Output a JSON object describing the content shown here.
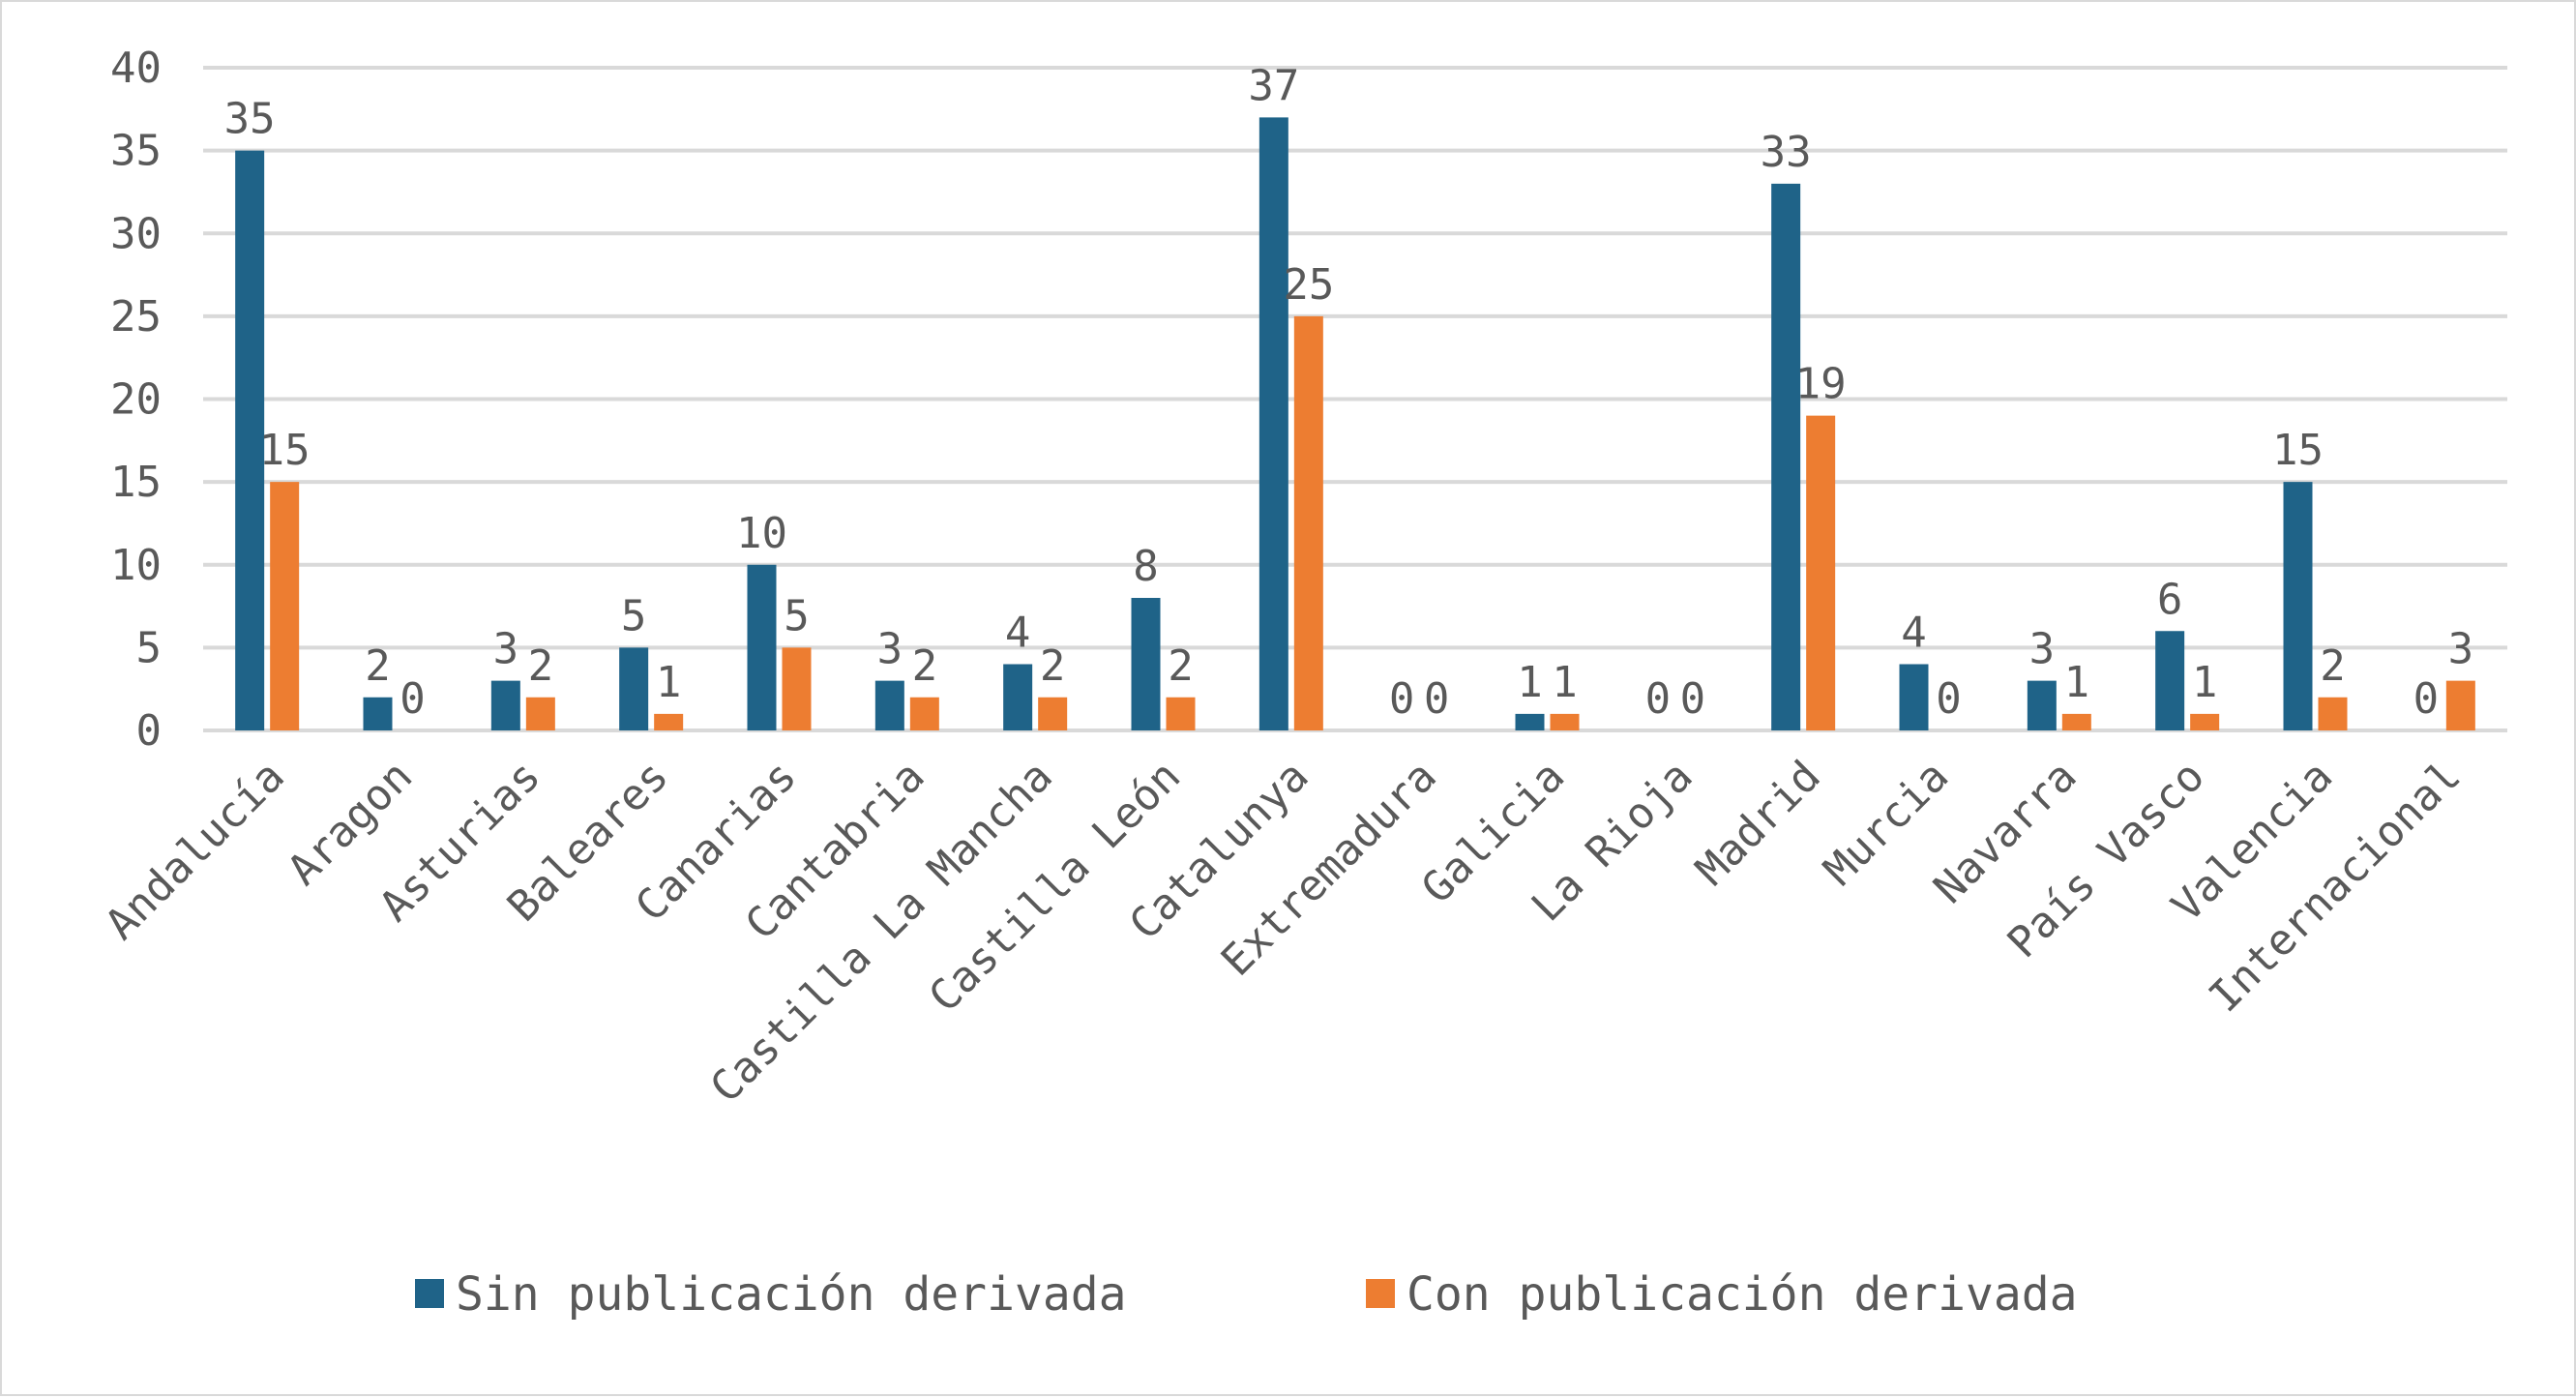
{
  "chart_data": {
    "type": "bar",
    "categories": [
      "Andalucía",
      "Aragon",
      "Asturias",
      "Baleares",
      "Canarias",
      "Cantabria",
      "Castilla La Mancha",
      "Castilla León",
      "Catalunya",
      "Extremadura",
      "Galicia",
      "La Rioja",
      "Madrid",
      "Murcia",
      "Navarra",
      "País Vasco",
      "Valencia",
      "Internacional"
    ],
    "series": [
      {
        "name": "Sin publicación derivada",
        "color": "#1f6388",
        "values": [
          35,
          2,
          3,
          5,
          10,
          3,
          4,
          8,
          37,
          0,
          1,
          0,
          33,
          4,
          3,
          6,
          15,
          0
        ]
      },
      {
        "name": "Con publicación derivada",
        "color": "#ed7d31",
        "values": [
          15,
          0,
          2,
          1,
          5,
          2,
          2,
          2,
          25,
          0,
          1,
          0,
          19,
          0,
          1,
          1,
          2,
          3
        ]
      }
    ],
    "ylim": [
      0,
      40
    ],
    "yticks": [
      0,
      5,
      10,
      15,
      20,
      25,
      30,
      35,
      40
    ],
    "grid": true,
    "legend_position": "bottom",
    "data_labels": true
  }
}
